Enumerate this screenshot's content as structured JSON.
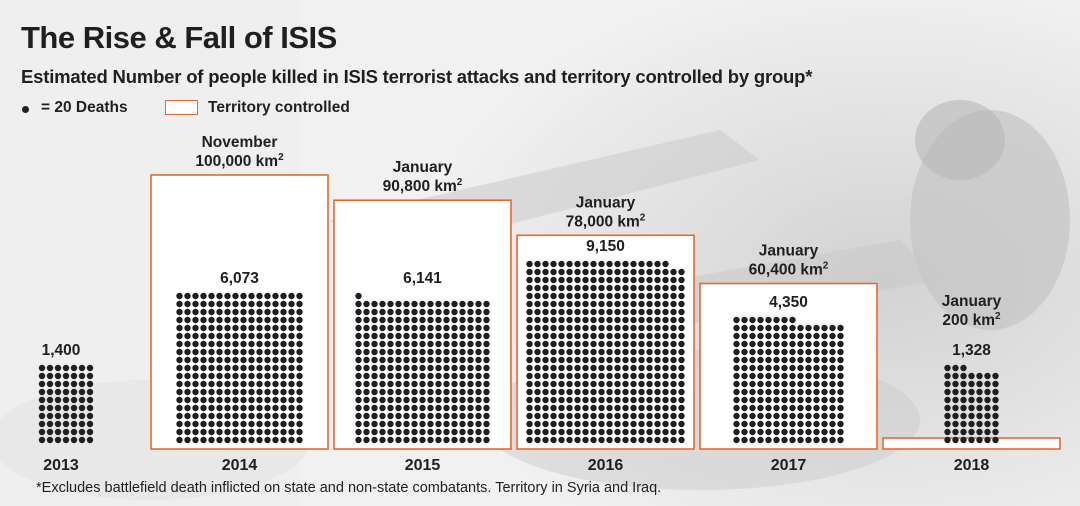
{
  "header": {
    "title": "The Rise & Fall of ISIS",
    "subtitle": "Estimated Number of people killed in ISIS terrorist attacks and territory controlled by group*"
  },
  "legend": {
    "dot_label": "= 20 Deaths",
    "territory_label": "Territory controlled"
  },
  "footnote": "*Excludes battlefield death inflicted on state and non-state combatants. Territory in Syria and Iraq.",
  "colors": {
    "territory_border": "#e26a33",
    "dot": "#1f1f1f",
    "text": "#1f1f1f"
  },
  "chart_data": {
    "type": "unit-dot bars with territory boxes",
    "dot_unit": 20,
    "series": [
      {
        "year": "2013",
        "deaths": 1400,
        "deaths_label": "1,400",
        "territory_km2": null,
        "territory_month": "",
        "territory_label": ""
      },
      {
        "year": "2014",
        "deaths": 6073,
        "deaths_label": "6,073",
        "territory_km2": 100000,
        "territory_month": "November",
        "territory_label": "100,000 km"
      },
      {
        "year": "2015",
        "deaths": 6141,
        "deaths_label": "6,141",
        "territory_km2": 90800,
        "territory_month": "January",
        "territory_label": "90,800 km"
      },
      {
        "year": "2016",
        "deaths": 9150,
        "deaths_label": "9,150",
        "territory_km2": 78000,
        "territory_month": "January",
        "territory_label": "78,000 km"
      },
      {
        "year": "2017",
        "deaths": 4350,
        "deaths_label": "4,350",
        "territory_km2": 60400,
        "territory_month": "January",
        "territory_label": "60,400 km"
      },
      {
        "year": "2018",
        "deaths": 1328,
        "deaths_label": "1,328",
        "territory_km2": 200,
        "territory_month": "January",
        "territory_label": "200 km"
      }
    ],
    "unit_superscript": "2"
  }
}
